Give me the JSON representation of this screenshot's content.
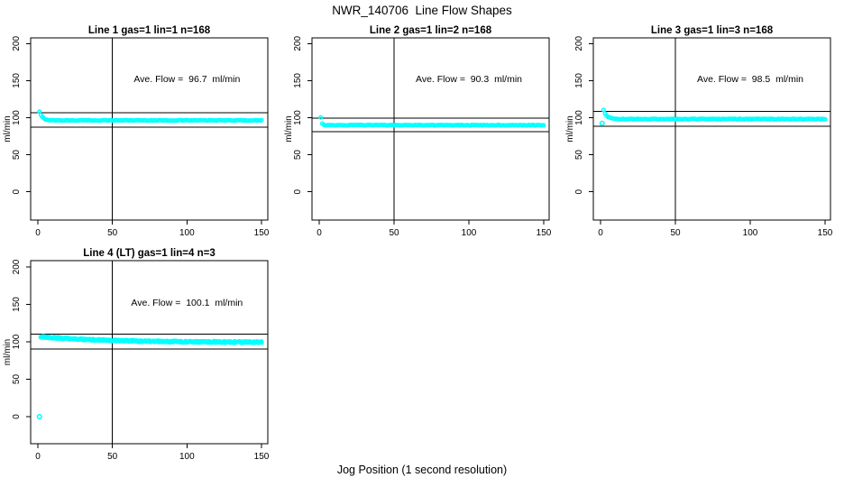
{
  "figure": {
    "title": "NWR_140706  Line Flow Shapes",
    "xlabel": "Jog Position (1 second resolution)",
    "background": "#FFFFFF",
    "marker_color": "#00FFFF",
    "line_color": "#000000"
  },
  "chart_data": [
    {
      "type": "scatter",
      "title": "Line 1 gas=1 lin=1 n=168",
      "annotation": "Ave. Flow =  96.7  ml/min",
      "ave_flow_ml_min": 96.7,
      "n": 168,
      "ylabel": "ml/min",
      "x_ticks": [
        0,
        50,
        100,
        150
      ],
      "y_ticks": [
        0,
        50,
        100,
        150,
        200
      ],
      "xlim": [
        -6,
        156
      ],
      "ylim": [
        -37,
        207
      ],
      "ref_vline_x": 50,
      "ref_hlines": [
        106.4,
        87.0
      ],
      "marker": "open-circle",
      "profile": {
        "x_start": 1,
        "x_end": 150,
        "start_value": 107.9,
        "settle_value": 96.4,
        "decay_tau": 2.0,
        "noise": 0.45,
        "n_series": 1,
        "outliers": []
      }
    },
    {
      "type": "scatter",
      "title": "Line 2 gas=1 lin=2 n=168",
      "annotation": "Ave. Flow =  90.3  ml/min",
      "ave_flow_ml_min": 90.3,
      "n": 168,
      "ylabel": "ml/min",
      "x_ticks": [
        0,
        50,
        100,
        150
      ],
      "y_ticks": [
        0,
        50,
        100,
        150,
        200
      ],
      "xlim": [
        -6,
        156
      ],
      "ylim": [
        -37,
        207
      ],
      "ref_vline_x": 50,
      "ref_hlines": [
        99.3,
        81.3
      ],
      "marker": "open-circle",
      "profile": {
        "x_start": 1,
        "x_end": 150,
        "start_value": 99.9,
        "settle_value": 89.9,
        "decay_tau": 0.7,
        "noise": 0.45,
        "n_series": 1,
        "outliers": []
      }
    },
    {
      "type": "scatter",
      "title": "Line 3 gas=1 lin=3 n=168",
      "annotation": "Ave. Flow =  98.5  ml/min",
      "ave_flow_ml_min": 98.5,
      "n": 168,
      "ylabel": "ml/min",
      "x_ticks": [
        0,
        50,
        100,
        150
      ],
      "y_ticks": [
        0,
        50,
        100,
        150,
        200
      ],
      "xlim": [
        -6,
        156
      ],
      "ylim": [
        -37,
        207
      ],
      "ref_vline_x": 50,
      "ref_hlines": [
        108.4,
        88.7
      ],
      "marker": "open-circle",
      "profile": {
        "x_start": 2,
        "x_end": 150,
        "start_value": 110.2,
        "settle_value": 98.2,
        "decay_tau": 2.2,
        "noise": 0.45,
        "n_series": 1,
        "outliers": [
          [
            1,
            92.5
          ]
        ]
      }
    },
    {
      "type": "scatter",
      "title": "Line 4 (LT) gas=1 lin=4 n=3",
      "annotation": "Ave. Flow =  100.1  ml/min",
      "ave_flow_ml_min": 100.1,
      "n": 3,
      "ylabel": "ml/min",
      "x_ticks": [
        0,
        50,
        100,
        150
      ],
      "y_ticks": [
        0,
        50,
        100,
        150,
        200
      ],
      "xlim": [
        -6,
        156
      ],
      "ylim": [
        -37,
        207
      ],
      "ref_vline_x": 50,
      "ref_hlines": [
        110.1,
        90.1
      ],
      "marker": "open-circle",
      "profile": {
        "x_start": 2,
        "x_end": 150,
        "start_value": 106.7,
        "settle_value": 99.2,
        "decay_tau": 45,
        "noise": 1.1,
        "n_series": 3,
        "outliers": [
          [
            1,
            0
          ]
        ]
      }
    }
  ]
}
